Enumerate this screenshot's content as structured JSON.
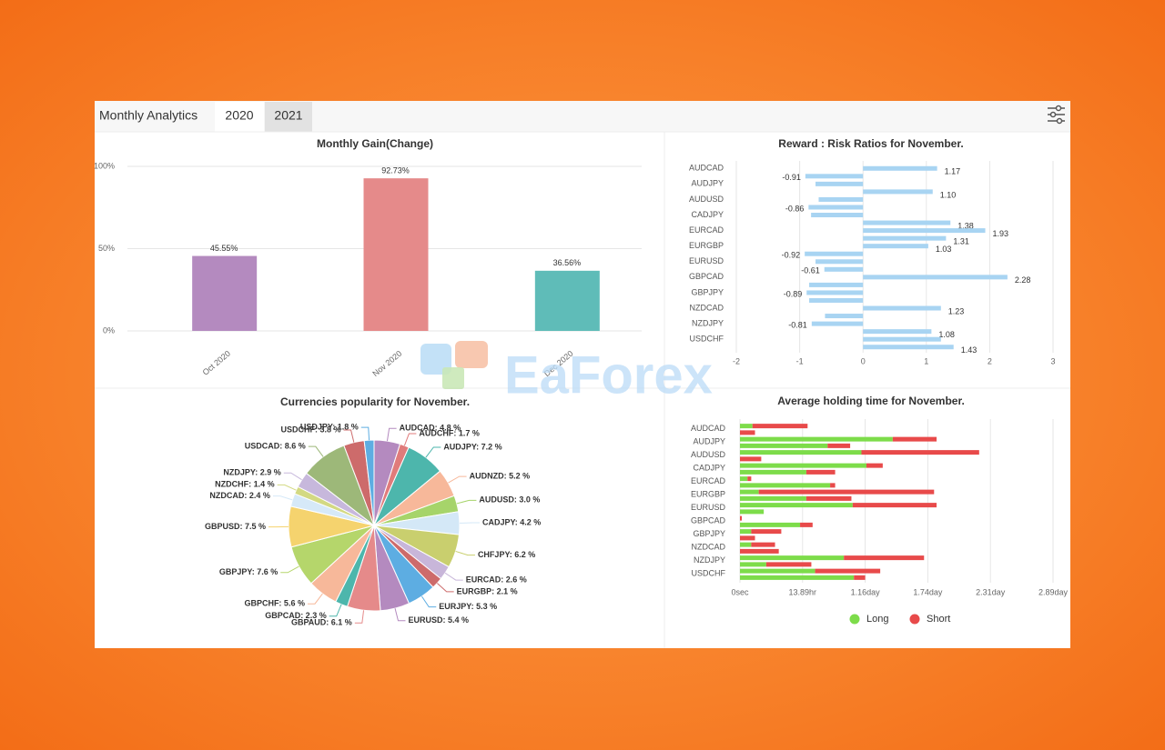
{
  "header": {
    "title": "Monthly Analytics",
    "tabs": [
      "2020",
      "2021"
    ]
  },
  "watermark": "EaForex",
  "chart_data": [
    {
      "type": "bar",
      "title": "Monthly Gain(Change)",
      "categories": [
        "Oct 2020",
        "Nov 2020",
        "Dec 2020"
      ],
      "values": [
        45.55,
        92.73,
        36.56
      ],
      "value_labels": [
        "45.55%",
        "92.73%",
        "36.56%"
      ],
      "colors": [
        "#b48abf",
        "#e58a8a",
        "#5fbcb8"
      ],
      "ylim": [
        0,
        100
      ],
      "yticks": [
        {
          "value": 0,
          "label": "0%"
        },
        {
          "value": 50,
          "label": "50%"
        },
        {
          "value": 100,
          "label": "100%"
        }
      ],
      "grid": true
    },
    {
      "type": "hbar",
      "title": "Reward : Risk Ratios for November.",
      "categories": [
        "AUDCAD",
        null,
        "AUDJPY",
        null,
        "AUDUSD",
        null,
        "CADJPY",
        null,
        "EURCAD",
        null,
        "EURGBP",
        null,
        "EURUSD",
        null,
        "GBPCAD",
        null,
        "GBPJPY",
        null,
        "NZDCAD",
        null,
        "NZDJPY",
        null,
        "USDCHF",
        null
      ],
      "values": [
        1.17,
        -0.91,
        -0.75,
        1.1,
        -0.7,
        -0.86,
        -0.82,
        1.38,
        1.93,
        1.31,
        1.03,
        -0.92,
        -0.75,
        -0.61,
        2.28,
        -0.85,
        -0.89,
        -0.85,
        1.23,
        -0.6,
        -0.81,
        1.08,
        1.23,
        1.43
      ],
      "value_labels": [
        "1.17",
        "-0.91",
        null,
        "1.10",
        null,
        "-0.86",
        null,
        "1.38",
        "1.93",
        "1.31",
        "1.03",
        "-0.92",
        null,
        "-0.61",
        "2.28",
        null,
        "-0.89",
        null,
        "1.23",
        null,
        "-0.81",
        "1.08",
        null,
        "1.43"
      ],
      "color": "#a8d4f2",
      "xlim": [
        -2,
        3
      ],
      "xticks": [
        -2,
        -1,
        0,
        1,
        2,
        3
      ],
      "grid": true
    },
    {
      "type": "pie",
      "title": "Currencies popularity for November.",
      "values": [
        4.8,
        1.7,
        7.2,
        5.2,
        3.0,
        4.2,
        6.2,
        2.6,
        2.1,
        5.3,
        5.4,
        6.1,
        2.3,
        5.6,
        7.6,
        7.5,
        2.4,
        1.4,
        2.9,
        8.6,
        3.8,
        1.8
      ],
      "labels": [
        "AUDCAD: 4.8 %",
        "AUDCHF: 1.7 %",
        "AUDJPY: 7.2 %",
        "AUDNZD: 5.2 %",
        "AUDUSD: 3.0 %",
        "CADJPY: 4.2 %",
        "CHFJPY: 6.2 %",
        "EURCAD: 2.6 %",
        "EURGBP: 2.1 %",
        "EURJPY: 5.3 %",
        "EURUSD: 5.4 %",
        "GBPAUD: 6.1 %",
        "GBPCAD: 2.3 %",
        "GBPCHF: 5.6 %",
        "GBPJPY: 7.6 %",
        "GBPUSD: 7.5 %",
        "NZDCAD: 2.4 %",
        "NZDCHF: 1.4 %",
        "NZDJPY: 2.9 %",
        "USDCAD: 8.6 %",
        "USDCHF: 3.8 %",
        "USDJPY: 1.8 %"
      ],
      "colors": [
        "#b48abf",
        "#e07b7b",
        "#4db6ac",
        "#f7b89a",
        "#a6d46a",
        "#d4e8f7",
        "#c9cf6e",
        "#c8b6d9",
        "#cd6b6b",
        "#5dade2",
        "#b48abf",
        "#e58a8a",
        "#4db6ac",
        "#f7b89a",
        "#b5d66b",
        "#f5d36e",
        "#d6e9f8",
        "#d3d982",
        "#c7b8dc",
        "#9db879",
        "#cd6b6b",
        "#5dade2"
      ]
    },
    {
      "type": "stackedhbar",
      "title": "Average holding time for November.",
      "categories": [
        "AUDCAD",
        null,
        "AUDJPY",
        null,
        "AUDUSD",
        null,
        "CADJPY",
        null,
        "EURCAD",
        null,
        "EURGBP",
        null,
        "EURUSD",
        null,
        "GBPCAD",
        null,
        "GBPJPY",
        null,
        "NZDCAD",
        null,
        "NZDJPY",
        null,
        "USDCHF",
        null
      ],
      "series": [
        {
          "name": "Long",
          "color": "#7ddc4a",
          "values": [
            10000,
            0,
            122000,
            70000,
            97000,
            0,
            101000,
            53000,
            6000,
            72000,
            15000,
            53000,
            90000,
            19000,
            0,
            48000,
            9000,
            0,
            9000,
            0,
            83000,
            21000,
            60000,
            91000
          ]
        },
        {
          "name": "Short",
          "color": "#e84a4a",
          "values": [
            44000,
            12000,
            35000,
            18000,
            94000,
            17000,
            13000,
            23000,
            3000,
            4000,
            140000,
            36000,
            67000,
            0,
            1500,
            10000,
            24000,
            12000,
            19000,
            31000,
            64000,
            36000,
            52000,
            9000
          ]
        }
      ],
      "xlim": [
        0,
        250000
      ],
      "xticks": [
        {
          "value": 0,
          "label": "0sec"
        },
        {
          "value": 50000,
          "label": "13.89hr"
        },
        {
          "value": 100000,
          "label": "1.16day"
        },
        {
          "value": 150000,
          "label": "1.74day"
        },
        {
          "value": 200000,
          "label": "2.31day"
        },
        {
          "value": 250000,
          "label": "2.89day"
        }
      ],
      "grid": true,
      "legend": "bottom"
    }
  ]
}
